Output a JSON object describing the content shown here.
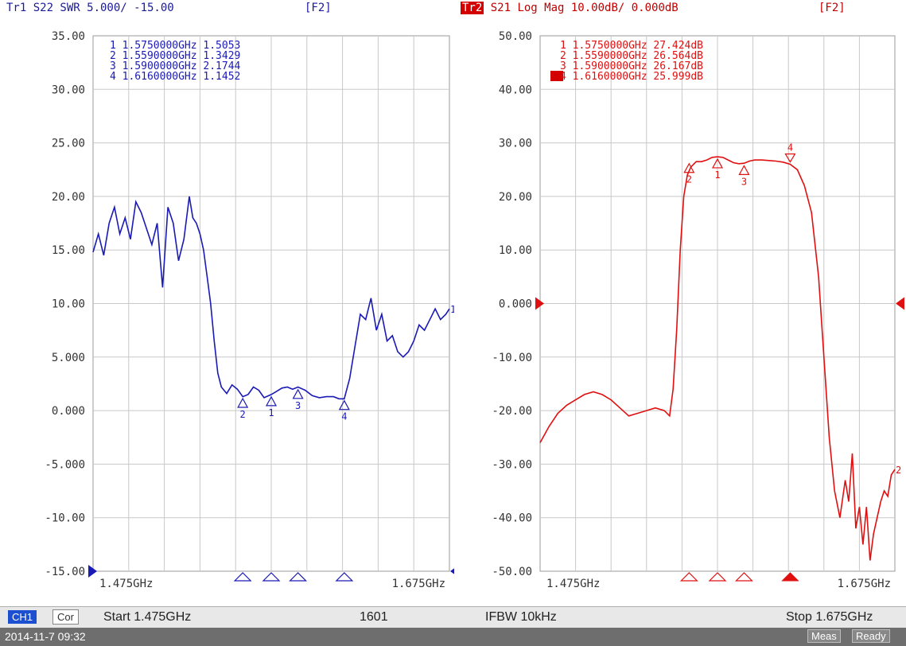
{
  "trace1": {
    "header": "Tr1 S22 SWR 5.000/ -15.00",
    "function_key": "[F2]",
    "color": "#1a1ab4",
    "marker_labels": [
      "1 1.5750000GHz 1.5053",
      "2 1.5590000GHz 1.3429",
      "3 1.5900000GHz 2.1744",
      "4 1.6160000GHz 1.1452"
    ],
    "y_ticks": [
      "35.00",
      "30.00",
      "25.00",
      "20.00",
      "15.00",
      "10.00",
      "5.000",
      "0.000",
      "-5.000",
      "-10.00",
      "-15.00"
    ],
    "x_start_label": "1.475GHz",
    "x_stop_label": "1.675GHz",
    "trace_end_label": "1"
  },
  "trace2": {
    "badge": "Tr2",
    "header": " S21 Log Mag 10.00dB/ 0.000dB",
    "function_key": "[F2]",
    "color": "#e01010",
    "marker_labels": [
      "1 1.5750000GHz 27.424dB",
      "2 1.5590000GHz 26.564dB",
      "3 1.5900000GHz 26.167dB",
      "4 1.6160000GHz 25.999dB"
    ],
    "active_marker": "4",
    "y_ticks": [
      "50.00",
      "40.00",
      "30.00",
      "20.00",
      "10.00",
      "0.000",
      "-10.00",
      "-20.00",
      "-30.00",
      "-40.00",
      "-50.00"
    ],
    "x_start_label": "1.475GHz",
    "x_stop_label": "1.675GHz",
    "trace_end_label": "2"
  },
  "chart_data": [
    {
      "type": "line",
      "title": "Tr1 S22 SWR 5.000/ -15.00",
      "xlabel": "",
      "ylabel": "",
      "xlim": [
        1.475,
        1.675
      ],
      "ylim": [
        -15,
        35
      ],
      "grid": true,
      "series": [
        {
          "name": "Tr1 S22 SWR",
          "x": [
            1.475,
            1.478,
            1.481,
            1.484,
            1.487,
            1.49,
            1.493,
            1.496,
            1.499,
            1.502,
            1.505,
            1.508,
            1.511,
            1.514,
            1.517,
            1.52,
            1.523,
            1.526,
            1.529,
            1.531,
            1.533,
            1.535,
            1.537,
            1.539,
            1.541,
            1.543,
            1.545,
            1.547,
            1.55,
            1.553,
            1.556,
            1.559,
            1.562,
            1.565,
            1.568,
            1.571,
            1.575,
            1.578,
            1.581,
            1.584,
            1.587,
            1.59,
            1.594,
            1.598,
            1.602,
            1.606,
            1.61,
            1.613,
            1.616,
            1.619,
            1.622,
            1.625,
            1.628,
            1.631,
            1.634,
            1.637,
            1.64,
            1.643,
            1.646,
            1.649,
            1.652,
            1.655,
            1.658,
            1.661,
            1.664,
            1.667,
            1.67,
            1.673,
            1.675
          ],
          "values": [
            14.8,
            16.5,
            14.5,
            17.5,
            19.0,
            16.5,
            18.0,
            16.0,
            19.5,
            18.5,
            17.0,
            15.5,
            17.5,
            11.5,
            19.0,
            17.5,
            14.0,
            16.0,
            20.0,
            18.0,
            17.5,
            16.5,
            15.0,
            12.5,
            10.0,
            6.5,
            3.5,
            2.2,
            1.6,
            2.4,
            2.0,
            1.3,
            1.5,
            2.2,
            1.9,
            1.2,
            1.5,
            1.8,
            2.1,
            2.2,
            2.0,
            2.2,
            1.9,
            1.4,
            1.2,
            1.3,
            1.3,
            1.1,
            1.1,
            3.0,
            6.0,
            9.0,
            8.5,
            10.5,
            7.5,
            9.0,
            6.5,
            7.0,
            5.5,
            5.0,
            5.5,
            6.5,
            8.0,
            7.5,
            8.5,
            9.5,
            8.5,
            9.0,
            9.5
          ]
        }
      ],
      "markers": [
        {
          "label": "1",
          "x": 1.575,
          "y": 1.5053
        },
        {
          "label": "2",
          "x": 1.559,
          "y": 1.3429
        },
        {
          "label": "3",
          "x": 1.59,
          "y": 2.1744
        },
        {
          "label": "4",
          "x": 1.616,
          "y": 1.1452
        }
      ]
    },
    {
      "type": "line",
      "title": "Tr2 S21 Log Mag 10.00dB/ 0.000dB",
      "xlabel": "",
      "ylabel": "",
      "xlim": [
        1.475,
        1.675
      ],
      "ylim": [
        -50,
        50
      ],
      "grid": true,
      "series": [
        {
          "name": "Tr2 S21 Log Mag",
          "x": [
            1.475,
            1.48,
            1.485,
            1.49,
            1.495,
            1.5,
            1.505,
            1.51,
            1.515,
            1.52,
            1.525,
            1.53,
            1.535,
            1.54,
            1.545,
            1.548,
            1.55,
            1.552,
            1.554,
            1.556,
            1.558,
            1.56,
            1.563,
            1.566,
            1.569,
            1.572,
            1.575,
            1.578,
            1.581,
            1.584,
            1.587,
            1.59,
            1.593,
            1.596,
            1.6,
            1.604,
            1.608,
            1.612,
            1.616,
            1.62,
            1.624,
            1.628,
            1.632,
            1.635,
            1.638,
            1.641,
            1.644,
            1.647,
            1.649,
            1.651,
            1.653,
            1.655,
            1.657,
            1.659,
            1.661,
            1.663,
            1.665,
            1.667,
            1.669,
            1.671,
            1.673,
            1.675
          ],
          "values": [
            -26,
            -23,
            -20.5,
            -19,
            -18,
            -17,
            -16.5,
            -17,
            -18,
            -19.5,
            -21,
            -20.5,
            -20,
            -19.5,
            -20,
            -21,
            -16,
            -5,
            10,
            20,
            24,
            25.5,
            26.5,
            26.5,
            26.8,
            27.3,
            27.4,
            27.3,
            26.8,
            26.3,
            26.1,
            26.2,
            26.6,
            26.8,
            26.8,
            26.7,
            26.6,
            26.4,
            26,
            25,
            22,
            17,
            5,
            -10,
            -25,
            -35,
            -40,
            -33,
            -37,
            -28,
            -42,
            -38,
            -45,
            -38,
            -48,
            -43,
            -40,
            -37,
            -35,
            -36,
            -32,
            -31
          ]
        }
      ],
      "markers": [
        {
          "label": "1",
          "x": 1.575,
          "y": 27.424
        },
        {
          "label": "2",
          "x": 1.559,
          "y": 26.564
        },
        {
          "label": "3",
          "x": 1.59,
          "y": 26.167
        },
        {
          "label": "4",
          "x": 1.616,
          "y": 25.999
        }
      ]
    }
  ],
  "status": {
    "channel": "CH1",
    "correction": "Cor",
    "start": "Start 1.475GHz",
    "points": "1601",
    "ifbw": "IFBW 10kHz",
    "stop": "Stop 1.675GHz"
  },
  "footer": {
    "timestamp": "2014-11-7 09:32",
    "meas": "Meas",
    "ready": "Ready"
  }
}
